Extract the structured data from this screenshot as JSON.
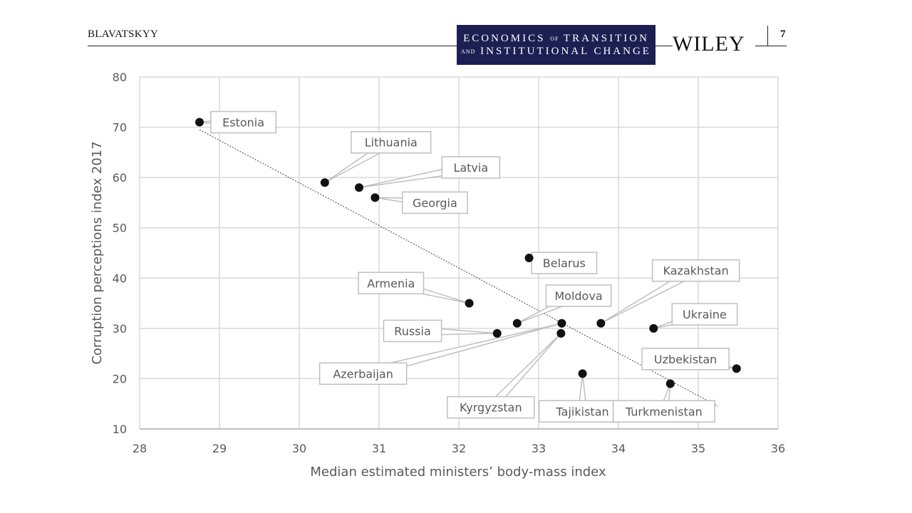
{
  "header": {
    "author": "BLAVATSKYY",
    "journal_line1_a": "ECONOMICS",
    "journal_line1_b": "OF",
    "journal_line1_c": "TRANSITION",
    "journal_line2_a": "AND",
    "journal_line2_b": "INSTITUTIONAL CHANGE",
    "publisher": "WILEY",
    "page_number": "7",
    "journal_bg": "#1c1f52"
  },
  "chart_data": {
    "type": "scatter",
    "xlabel": "Median estimated ministers’ body-mass index",
    "ylabel": "Corruption perceptions index 2017",
    "xlim": [
      28,
      36
    ],
    "ylim": [
      10,
      80
    ],
    "xticks": [
      "28",
      "29",
      "30",
      "31",
      "32",
      "33",
      "34",
      "35",
      "36"
    ],
    "yticks": [
      "10",
      "20",
      "30",
      "40",
      "50",
      "60",
      "70",
      "80"
    ],
    "grid": true,
    "trendline": {
      "from": [
        28.75,
        69.5
      ],
      "to": [
        35.25,
        14.5
      ],
      "style": "dotted"
    },
    "points": [
      {
        "label": "Estonia",
        "x": 28.75,
        "y": 71,
        "lx": 29.3,
        "ly": 71
      },
      {
        "label": "Lithuania",
        "x": 30.32,
        "y": 59,
        "lx": 31.15,
        "ly": 67
      },
      {
        "label": "Latvia",
        "x": 30.75,
        "y": 58,
        "lx": 32.15,
        "ly": 62
      },
      {
        "label": "Georgia",
        "x": 30.95,
        "y": 56,
        "lx": 31.7,
        "ly": 55
      },
      {
        "label": "Belarus",
        "x": 32.88,
        "y": 44,
        "lx": 33.32,
        "ly": 43
      },
      {
        "label": "Kazakhstan",
        "x": 33.78,
        "y": 31,
        "lx": 34.97,
        "ly": 41.5
      },
      {
        "label": "Armenia",
        "x": 32.13,
        "y": 35,
        "lx": 31.15,
        "ly": 39
      },
      {
        "label": "Moldova",
        "x": 32.73,
        "y": 31,
        "lx": 33.5,
        "ly": 36.5
      },
      {
        "label": "Ukraine",
        "x": 34.44,
        "y": 30,
        "lx": 35.08,
        "ly": 32.8
      },
      {
        "label": "Russia",
        "x": 32.48,
        "y": 29,
        "lx": 31.42,
        "ly": 29.5
      },
      {
        "label": "Azerbaijan",
        "x": 33.29,
        "y": 31,
        "lx": 30.8,
        "ly": 21
      },
      {
        "label": "Kyrgyzstan",
        "x": 33.28,
        "y": 29,
        "lx": 32.4,
        "ly": 14.3
      },
      {
        "label": "Uzbekistan",
        "x": 35.48,
        "y": 22,
        "lx": 34.84,
        "ly": 23.9
      },
      {
        "label": "Tajikistan",
        "x": 33.55,
        "y": 21,
        "lx": 33.55,
        "ly": 13.5
      },
      {
        "label": "Turkmenistan",
        "x": 34.65,
        "y": 19,
        "lx": 34.57,
        "ly": 13.5
      }
    ]
  }
}
